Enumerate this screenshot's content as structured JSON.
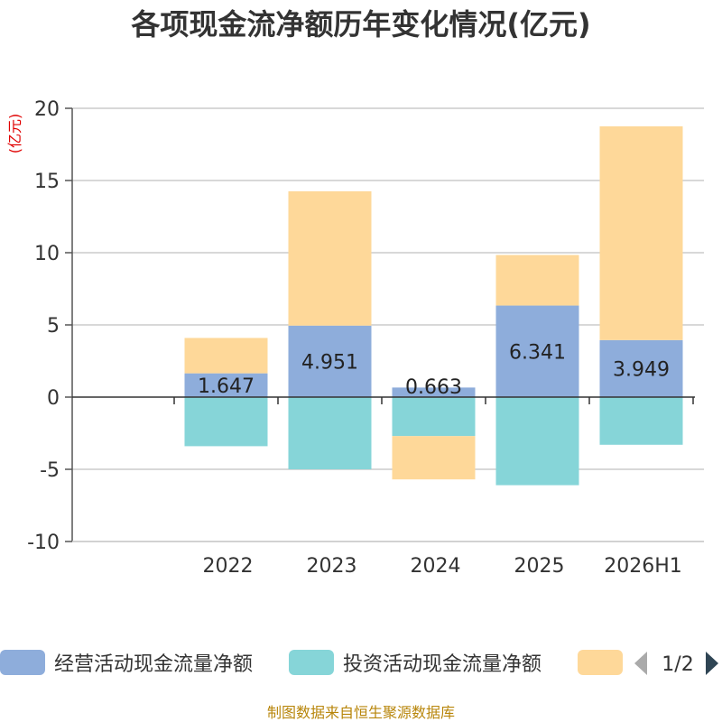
{
  "chart_data": {
    "type": "bar",
    "stacked": true,
    "title": "各项现金流净额历年变化情况(亿元)",
    "unit_label": "(亿元)",
    "categories": [
      "2022",
      "2023",
      "2024",
      "2025",
      "2026H1"
    ],
    "ylim": [
      -10,
      20
    ],
    "yticks": [
      -10,
      -5,
      0,
      5,
      10,
      15,
      20
    ],
    "grid": true,
    "legend_placement": "bottom",
    "series": [
      {
        "name": "经营活动现金流量净额",
        "color": "#8eaddb",
        "values": [
          1.647,
          4.951,
          0.663,
          6.341,
          3.949
        ],
        "show_labels": true
      },
      {
        "name": "投资活动现金流量净额",
        "color": "#86d5d8",
        "values": [
          -3.4,
          -5.0,
          -2.7,
          -6.1,
          -3.3
        ],
        "show_labels": false
      },
      {
        "name": "",
        "color": "#fed899",
        "values": [
          2.45,
          9.3,
          -3.0,
          3.5,
          14.8
        ],
        "show_labels": false
      }
    ],
    "legend_page": "1/2"
  },
  "source_text": "制图数据来自恒生聚源数据库"
}
